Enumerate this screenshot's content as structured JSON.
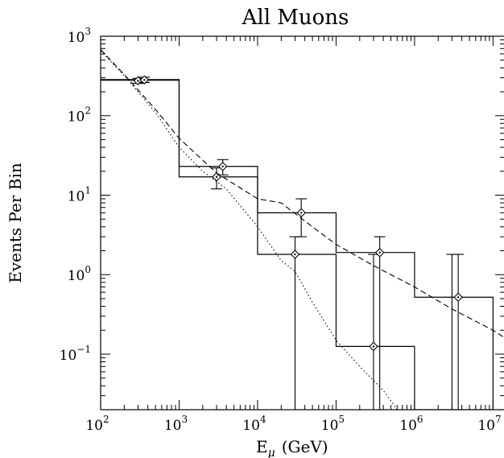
{
  "chart_data": {
    "type": "line",
    "title": "All Muons",
    "xlabel_main": "E",
    "xlabel_sub": "μ",
    "xlabel_unit": "(GeV)",
    "ylabel": "Events Per Bin",
    "x_scale": "log",
    "y_scale": "log",
    "xlim": [
      100,
      14125375
    ],
    "ylim": [
      0.02,
      1000
    ],
    "grid": false,
    "x_ticks": [
      {
        "base": "10",
        "exp": "2",
        "value": 100
      },
      {
        "base": "10",
        "exp": "3",
        "value": 1000
      },
      {
        "base": "10",
        "exp": "4",
        "value": 10000
      },
      {
        "base": "10",
        "exp": "5",
        "value": 100000
      },
      {
        "base": "10",
        "exp": "6",
        "value": 1000000
      },
      {
        "base": "10",
        "exp": "7",
        "value": 10000000
      }
    ],
    "y_ticks": [
      {
        "base": "10",
        "exp": "−1",
        "value": 0.1
      },
      {
        "base": "10",
        "exp": "0",
        "value": 1
      },
      {
        "base": "10",
        "exp": "1",
        "value": 10
      },
      {
        "base": "10",
        "exp": "2",
        "value": 100
      },
      {
        "base": "10",
        "exp": "3",
        "value": 1000
      }
    ],
    "histograms": [
      {
        "bins": [
          {
            "x0": 100,
            "x1": 1000,
            "y": 285
          },
          {
            "x0": 1000,
            "x1": 10000,
            "y": 17
          },
          {
            "x0": 10000,
            "x1": 100000,
            "y": 1.8
          },
          {
            "x0": 100000,
            "x1": 1000000,
            "y": 0.125
          },
          {
            "x0": 1000000,
            "x1": 10000000,
            "y": 0.02
          }
        ]
      },
      {
        "bins": [
          {
            "x0": 100,
            "x1": 1000,
            "y": 280
          },
          {
            "x0": 1000,
            "x1": 10000,
            "y": 23
          },
          {
            "x0": 10000,
            "x1": 100000,
            "y": 6
          },
          {
            "x0": 100000,
            "x1": 1000000,
            "y": 1.9
          },
          {
            "x0": 1000000,
            "x1": 10000000,
            "y": 0.52
          }
        ]
      }
    ],
    "points": [
      {
        "x": 300,
        "y": 275,
        "ylow": 255,
        "yhigh": 295
      },
      {
        "x": 360,
        "y": 282,
        "ylow": 262,
        "yhigh": 305
      },
      {
        "x": 3000,
        "y": 17,
        "ylow": 12,
        "yhigh": 22
      },
      {
        "x": 3600,
        "y": 23,
        "ylow": 18,
        "yhigh": 28
      },
      {
        "x": 30000,
        "y": 1.8,
        "ylow": 0.02,
        "yhigh": 3
      },
      {
        "x": 36000,
        "y": 6,
        "ylow": 3,
        "yhigh": 9
      },
      {
        "x": 300000,
        "y": 0.125,
        "ylow": 0.02,
        "yhigh": 1.8
      },
      {
        "x": 360000,
        "y": 1.9,
        "ylow": 0.02,
        "yhigh": 3
      },
      {
        "x": 3000000,
        "y": 0.02,
        "ylow": 0.02,
        "yhigh": 1.8
      },
      {
        "x": 3600000,
        "y": 0.52,
        "ylow": 0.02,
        "yhigh": 1.8
      }
    ],
    "curves": [
      {
        "style": "dashed",
        "points": [
          [
            100,
            680
          ],
          [
            200,
            330
          ],
          [
            500,
            120
          ],
          [
            1000,
            52
          ],
          [
            3000,
            19
          ],
          [
            10000,
            9
          ],
          [
            20000,
            8
          ],
          [
            50000,
            4
          ],
          [
            100000,
            2.4
          ],
          [
            300000,
            1.3
          ],
          [
            1000000,
            0.7
          ],
          [
            3000000,
            0.37
          ],
          [
            10000000,
            0.2
          ],
          [
            14125375,
            0.16
          ]
        ]
      },
      {
        "style": "dotted",
        "points": [
          [
            100,
            650
          ],
          [
            200,
            320
          ],
          [
            500,
            110
          ],
          [
            1000,
            40
          ],
          [
            2000,
            20
          ],
          [
            4000,
            12
          ],
          [
            10000,
            4
          ],
          [
            20000,
            1.5
          ],
          [
            30000,
            1.1
          ],
          [
            50000,
            0.45
          ],
          [
            100000,
            0.15
          ],
          [
            200000,
            0.07
          ],
          [
            400000,
            0.035
          ],
          [
            600000,
            0.02
          ]
        ]
      }
    ]
  }
}
